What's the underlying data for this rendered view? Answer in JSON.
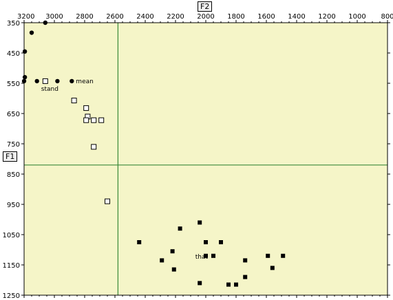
{
  "chart_data": {
    "type": "scatter",
    "x_axis": {
      "label": "F2",
      "reversed": true,
      "range": [
        3200,
        800
      ],
      "ticks": [
        3200,
        3000,
        2800,
        2600,
        2400,
        2200,
        2000,
        1800,
        1600,
        1400,
        1200,
        1000,
        800
      ]
    },
    "y_axis": {
      "label": "F1",
      "reversed": true,
      "range": [
        350,
        1250
      ],
      "ticks": [
        350,
        450,
        550,
        650,
        750,
        850,
        950,
        1050,
        1150,
        1250
      ]
    },
    "crosshair": {
      "x": 2580,
      "y": 820
    },
    "grid": false,
    "colors": {
      "background": "#f5f5c8",
      "crosshair": "#3a8a3a",
      "marker": "#000000"
    },
    "series": [
      {
        "marker": "filled-circle",
        "points": [
          {
            "x": 3060,
            "y": 350
          },
          {
            "x": 3150,
            "y": 383
          },
          {
            "x": 3195,
            "y": 445
          },
          {
            "x": 3195,
            "y": 530
          },
          {
            "x": 3200,
            "y": 543
          },
          {
            "x": 3115,
            "y": 543
          },
          {
            "x": 2980,
            "y": 543
          },
          {
            "x": 2885,
            "y": 543
          }
        ]
      },
      {
        "marker": "open-square",
        "points": [
          {
            "x": 3060,
            "y": 543
          },
          {
            "x": 2870,
            "y": 607
          },
          {
            "x": 2790,
            "y": 632
          },
          {
            "x": 2780,
            "y": 660
          },
          {
            "x": 2790,
            "y": 672
          },
          {
            "x": 2740,
            "y": 672
          },
          {
            "x": 2690,
            "y": 672
          },
          {
            "x": 2740,
            "y": 760
          },
          {
            "x": 2650,
            "y": 940
          }
        ]
      },
      {
        "marker": "filled-square",
        "points": [
          {
            "x": 2040,
            "y": 1010
          },
          {
            "x": 2170,
            "y": 1030
          },
          {
            "x": 2440,
            "y": 1075
          },
          {
            "x": 2000,
            "y": 1075
          },
          {
            "x": 1900,
            "y": 1075
          },
          {
            "x": 2220,
            "y": 1105
          },
          {
            "x": 2000,
            "y": 1120
          },
          {
            "x": 1950,
            "y": 1120
          },
          {
            "x": 2290,
            "y": 1135
          },
          {
            "x": 1740,
            "y": 1135
          },
          {
            "x": 1590,
            "y": 1120
          },
          {
            "x": 1490,
            "y": 1120
          },
          {
            "x": 2210,
            "y": 1165
          },
          {
            "x": 1560,
            "y": 1160
          },
          {
            "x": 1740,
            "y": 1190
          },
          {
            "x": 2040,
            "y": 1210
          },
          {
            "x": 1850,
            "y": 1215
          },
          {
            "x": 1800,
            "y": 1215
          }
        ]
      }
    ],
    "annotations": [
      {
        "text": "mean",
        "x": 2885,
        "y": 543
      },
      {
        "text": "stand",
        "x": 3060,
        "y": 543
      },
      {
        "text": "that",
        "x": 1950,
        "y": 1120
      }
    ]
  }
}
